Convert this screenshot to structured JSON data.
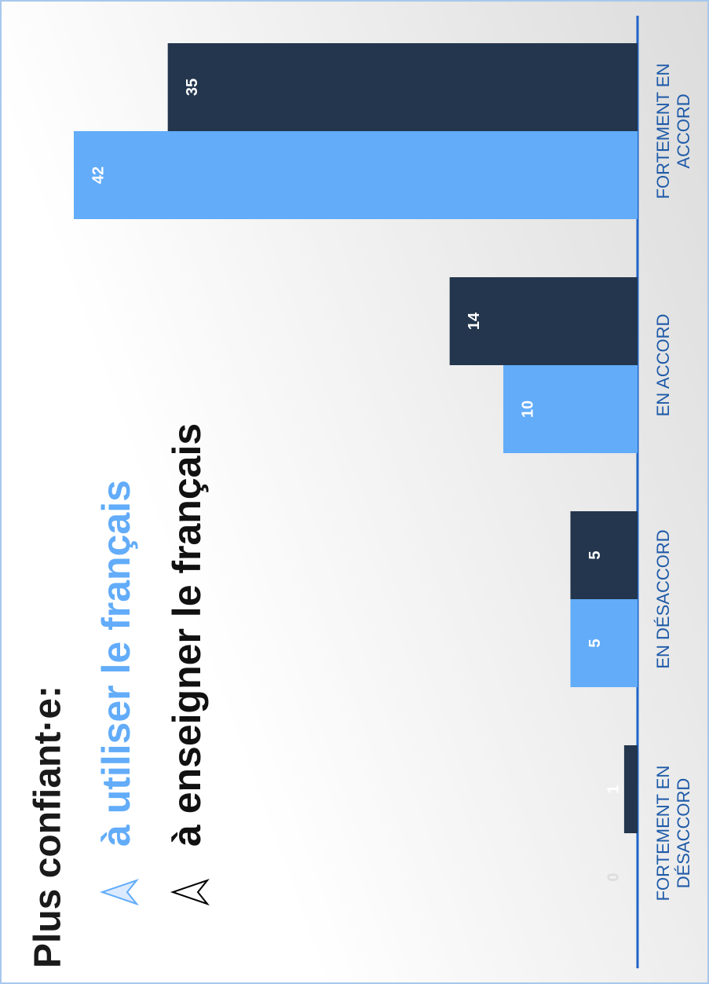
{
  "chart_data": {
    "type": "bar",
    "title": "Plus confiant·e:",
    "categories": [
      "FORTEMENT EN DÉSACCORD",
      "EN DÉSACCORD",
      "EN ACCORD",
      "FORTEMENT EN ACCORD"
    ],
    "series": [
      {
        "name": "à utiliser le français",
        "color": "#62acf9",
        "values": [
          0,
          5,
          10,
          42
        ]
      },
      {
        "name": "à enseigner le français",
        "color": "#23364d",
        "values": [
          1,
          5,
          14,
          35
        ]
      }
    ]
  }
}
